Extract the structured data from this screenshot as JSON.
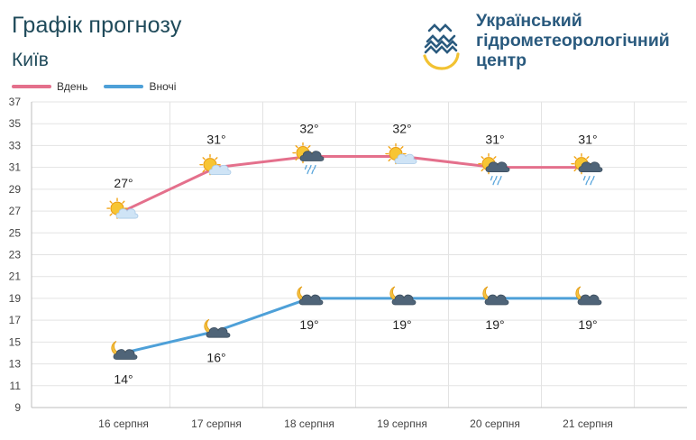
{
  "header": {
    "title": "Графік прогнозу",
    "city": "Київ",
    "org_lines": [
      "Український",
      "гідрометеорологічний",
      "центр"
    ]
  },
  "colors": {
    "day": "#e4708c",
    "night": "#4ea0d8",
    "grid": "#e3e3e3",
    "title": "#1f4a5a",
    "org": "#2a5a7e"
  },
  "chart_data": {
    "type": "line",
    "categories": [
      "16 серпня",
      "17 серпня",
      "18 серпня",
      "19 серпня",
      "20 серпня",
      "21 серпня"
    ],
    "series": [
      {
        "name": "Вдень",
        "values": [
          27,
          31,
          32,
          32,
          31,
          31
        ],
        "labels": [
          "27°",
          "31°",
          "32°",
          "32°",
          "31°",
          "31°"
        ],
        "icons": [
          "sun-cloud-icon",
          "sun-cloud-icon",
          "sun-cloud-rain-icon",
          "sun-cloud-icon",
          "sun-cloud-rain-icon",
          "sun-cloud-rain-icon"
        ]
      },
      {
        "name": "Вночі",
        "values": [
          14,
          16,
          19,
          19,
          19,
          19
        ],
        "labels": [
          "14°",
          "16°",
          "19°",
          "19°",
          "19°",
          "19°"
        ],
        "icons": [
          "moon-cloud-icon",
          "moon-cloud-icon",
          "moon-cloud-icon",
          "moon-cloud-icon",
          "moon-cloud-icon",
          "moon-cloud-icon"
        ]
      }
    ],
    "yticks": [
      37,
      35,
      33,
      31,
      29,
      27,
      25,
      23,
      21,
      19,
      17,
      15,
      13,
      11,
      9
    ],
    "ylim": [
      9,
      37
    ],
    "grid": true,
    "legend": "top-left"
  }
}
